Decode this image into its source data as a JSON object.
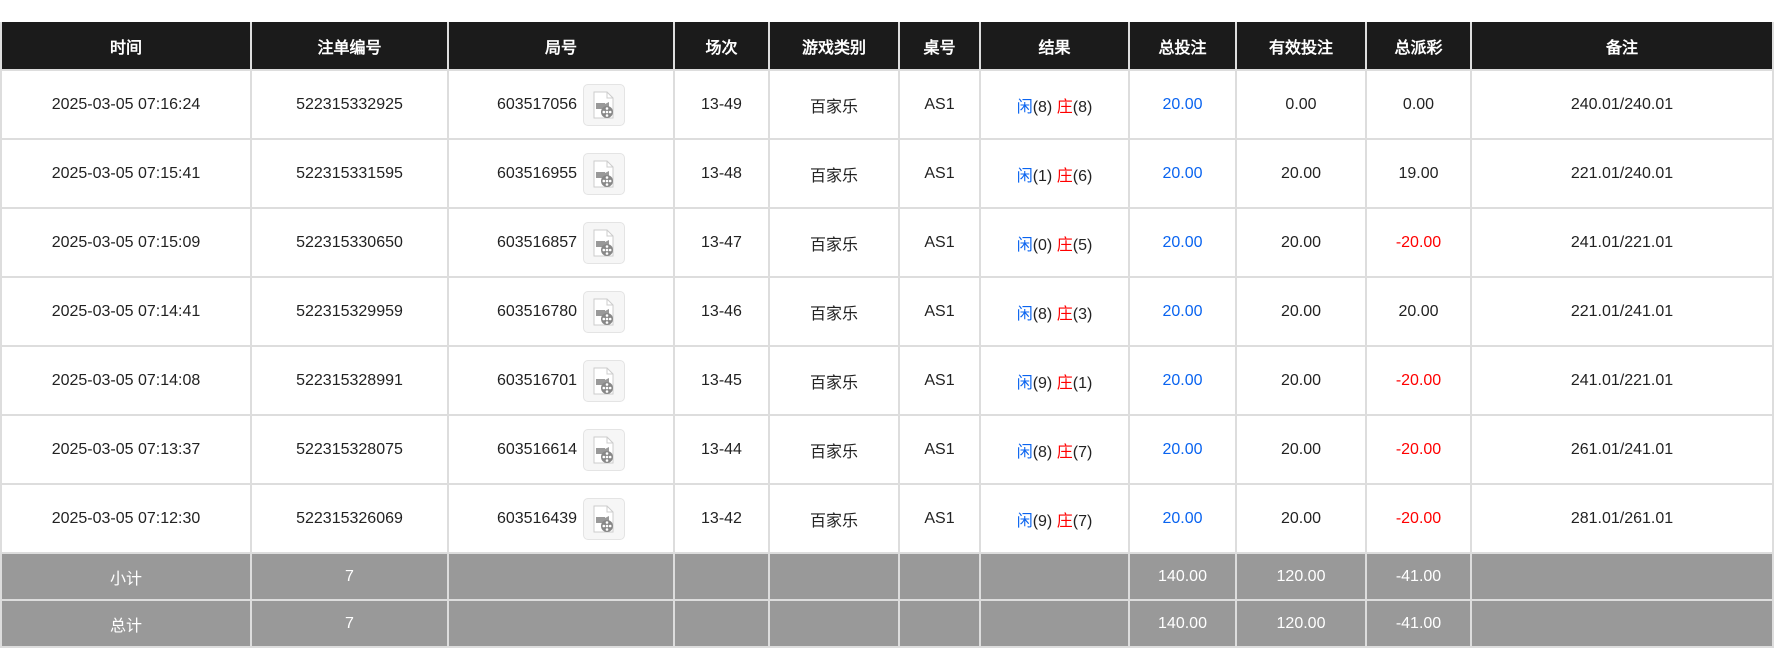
{
  "headers": [
    "时间",
    "注单编号",
    "局号",
    "场次",
    "游戏类别",
    "桌号",
    "结果",
    "总投注",
    "有效投注",
    "总派彩",
    "备注"
  ],
  "rows": [
    {
      "time": "2025-03-05 07:16:24",
      "order": "522315332925",
      "round": "603517056",
      "session": "13-49",
      "game": "百家乐",
      "table": "AS1",
      "player_label": "闲",
      "player": "(8)",
      "banker_label": "庄",
      "banker": "(8)",
      "bet": "20.00",
      "valid": "0.00",
      "payout": "0.00",
      "payout_negative": false,
      "note": "240.01/240.01"
    },
    {
      "time": "2025-03-05 07:15:41",
      "order": "522315331595",
      "round": "603516955",
      "session": "13-48",
      "game": "百家乐",
      "table": "AS1",
      "player_label": "闲",
      "player": "(1)",
      "banker_label": "庄",
      "banker": "(6)",
      "bet": "20.00",
      "valid": "20.00",
      "payout": "19.00",
      "payout_negative": false,
      "note": "221.01/240.01"
    },
    {
      "time": "2025-03-05 07:15:09",
      "order": "522315330650",
      "round": "603516857",
      "session": "13-47",
      "game": "百家乐",
      "table": "AS1",
      "player_label": "闲",
      "player": "(0)",
      "banker_label": "庄",
      "banker": "(5)",
      "bet": "20.00",
      "valid": "20.00",
      "payout": "-20.00",
      "payout_negative": true,
      "note": "241.01/221.01"
    },
    {
      "time": "2025-03-05 07:14:41",
      "order": "522315329959",
      "round": "603516780",
      "session": "13-46",
      "game": "百家乐",
      "table": "AS1",
      "player_label": "闲",
      "player": "(8)",
      "banker_label": "庄",
      "banker": "(3)",
      "bet": "20.00",
      "valid": "20.00",
      "payout": "20.00",
      "payout_negative": false,
      "note": "221.01/241.01"
    },
    {
      "time": "2025-03-05 07:14:08",
      "order": "522315328991",
      "round": "603516701",
      "session": "13-45",
      "game": "百家乐",
      "table": "AS1",
      "player_label": "闲",
      "player": "(9)",
      "banker_label": "庄",
      "banker": "(1)",
      "bet": "20.00",
      "valid": "20.00",
      "payout": "-20.00",
      "payout_negative": true,
      "note": "241.01/221.01"
    },
    {
      "time": "2025-03-05 07:13:37",
      "order": "522315328075",
      "round": "603516614",
      "session": "13-44",
      "game": "百家乐",
      "table": "AS1",
      "player_label": "闲",
      "player": "(8)",
      "banker_label": "庄",
      "banker": "(7)",
      "bet": "20.00",
      "valid": "20.00",
      "payout": "-20.00",
      "payout_negative": true,
      "note": "261.01/241.01"
    },
    {
      "time": "2025-03-05 07:12:30",
      "order": "522315326069",
      "round": "603516439",
      "session": "13-42",
      "game": "百家乐",
      "table": "AS1",
      "player_label": "闲",
      "player": "(9)",
      "banker_label": "庄",
      "banker": "(7)",
      "bet": "20.00",
      "valid": "20.00",
      "payout": "-20.00",
      "payout_negative": true,
      "note": "281.01/261.01"
    }
  ],
  "summary": [
    {
      "label": "小计",
      "count": "7",
      "bet": "140.00",
      "valid": "120.00",
      "payout": "-41.00"
    },
    {
      "label": "总计",
      "count": "7",
      "bet": "140.00",
      "valid": "120.00",
      "payout": "-41.00"
    }
  ],
  "icons": {
    "replay": "video-replay-icon"
  },
  "colors": {
    "player": "#0a64f0",
    "banker": "#ff0000",
    "negative": "#ff0000",
    "header_bg": "#1b1b1b",
    "summary_bg": "#999999"
  }
}
